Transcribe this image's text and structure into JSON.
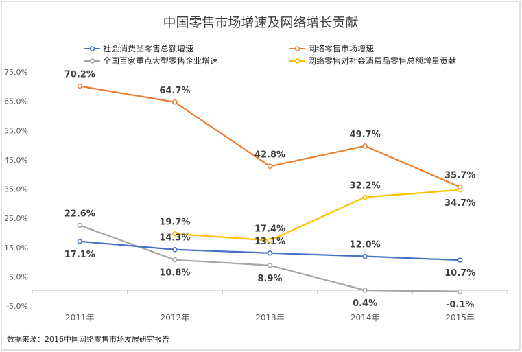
{
  "chart_data": {
    "type": "line",
    "title": "中国零售市场增速及网络增长贡献",
    "categories": [
      "2011年",
      "2012年",
      "2013年",
      "2014年",
      "2015年"
    ],
    "yticks": [
      "75.0%",
      "65.0%",
      "55.0%",
      "45.0%",
      "35.0%",
      "25.0%",
      "15.0%",
      "5.0%",
      "-5.0%"
    ],
    "ylim": [
      -5,
      75
    ],
    "xlabel": "",
    "ylabel": "",
    "legend_position": "top",
    "series": [
      {
        "name": "社会消费品零售总额增速",
        "color": "#4472c4",
        "values": [
          17.1,
          14.3,
          13.1,
          12.0,
          10.7
        ],
        "labels": [
          "17.1%",
          "14.3%",
          "13.1%",
          "12.0%",
          "10.7%"
        ]
      },
      {
        "name": "网络零售市场增速",
        "color": "#ed7d31",
        "values": [
          70.2,
          64.7,
          42.8,
          49.7,
          35.7
        ],
        "labels": [
          "70.2%",
          "64.7%",
          "42.8%",
          "49.7%",
          "35.7%"
        ]
      },
      {
        "name": "全国百家重点大型零售企业增速",
        "color": "#a5a5a5",
        "values": [
          22.6,
          10.8,
          8.9,
          0.4,
          -0.1
        ],
        "labels": [
          "22.6%",
          "10.8%",
          "8.9%",
          "0.4%",
          "-0.1%"
        ]
      },
      {
        "name": "网络零售对社会消费品零售总额增量贡献",
        "color": "#ffc000",
        "values": [
          null,
          19.7,
          17.4,
          32.2,
          34.7
        ],
        "labels": [
          null,
          "19.7%",
          "17.4%",
          "32.2%",
          "34.7%"
        ]
      }
    ],
    "source": "数据来源：2016中国网络零售市场发展研究报告"
  }
}
